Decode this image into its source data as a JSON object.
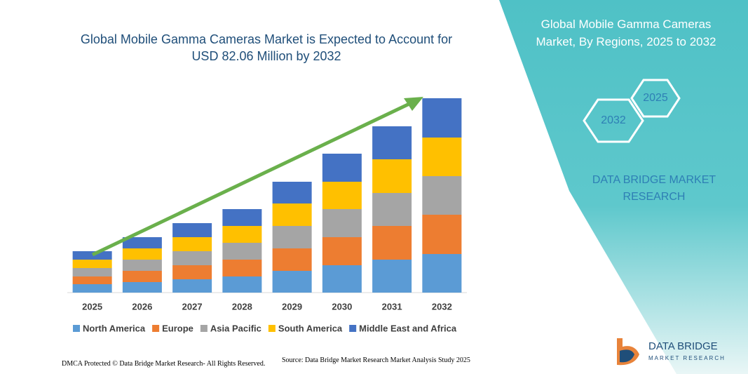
{
  "chart_data": {
    "type": "bar",
    "stacked": true,
    "title": "Global Mobile Gamma Cameras Market is Expected to Account for USD 82.06 Million by 2032",
    "categories": [
      "2025",
      "2026",
      "2027",
      "2028",
      "2029",
      "2030",
      "2031",
      "2032"
    ],
    "series": [
      {
        "name": "North America",
        "color": "#5b9bd5",
        "values": [
          12,
          15,
          19,
          23,
          31,
          39,
          47,
          55
        ]
      },
      {
        "name": "Europe",
        "color": "#ed7d31",
        "values": [
          11,
          16,
          20,
          24,
          32,
          40,
          48,
          56
        ]
      },
      {
        "name": "Asia Pacific",
        "color": "#a5a5a5",
        "values": [
          12,
          16,
          20,
          24,
          32,
          40,
          47,
          55
        ]
      },
      {
        "name": "South America",
        "color": "#ffc000",
        "values": [
          12,
          16,
          20,
          24,
          32,
          39,
          48,
          55
        ]
      },
      {
        "name": "Middle East and Africa",
        "color": "#4472c4",
        "values": [
          12,
          16,
          20,
          24,
          31,
          40,
          47,
          56
        ]
      }
    ],
    "ylim": [
      0,
      300
    ]
  },
  "panel": {
    "title": "Global Mobile Gamma Cameras Market, By Regions, 2025 to 2032",
    "hexagons": [
      "2025",
      "2032"
    ],
    "brand": "DATA BRIDGE MARKET RESEARCH"
  },
  "footer": {
    "dmca": "DMCA Protected © Data Bridge Market Research- All Rights Reserved.",
    "source": "Source: Data Bridge Market Research Market Analysis Study 2025"
  },
  "logo": {
    "name": "DATA BRIDGE",
    "tagline": "MARKET RESEARCH"
  }
}
